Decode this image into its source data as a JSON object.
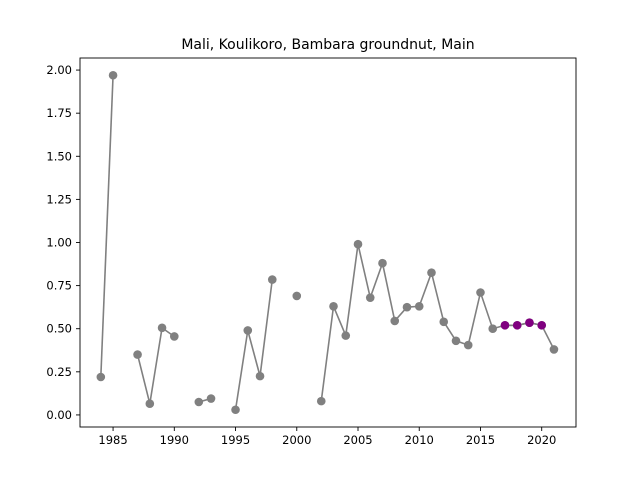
{
  "chart_data": {
    "type": "line",
    "title": "Mali, Koulikoro, Bambara groundnut, Main",
    "xlabel": "",
    "ylabel": "",
    "xlim": [
      1982.3,
      2022.8
    ],
    "ylim": [
      -0.07,
      2.07
    ],
    "xticks": [
      1985,
      1990,
      1995,
      2000,
      2005,
      2010,
      2015,
      2020
    ],
    "yticks": [
      0.0,
      0.25,
      0.5,
      0.75,
      1.0,
      1.25,
      1.5,
      1.75,
      2.0
    ],
    "ytick_labels": [
      "0.00",
      "0.25",
      "0.50",
      "0.75",
      "1.00",
      "1.25",
      "1.50",
      "1.75",
      "2.00"
    ],
    "grid": false,
    "colors": {
      "observed": "#808080",
      "highlight": "#800080"
    },
    "series": [
      {
        "color": "#808080",
        "points": [
          [
            1984,
            0.22
          ],
          [
            1985,
            1.97
          ],
          [
            1986,
            null
          ],
          [
            1987,
            0.35
          ],
          [
            1988,
            0.065
          ],
          [
            1989,
            0.505
          ],
          [
            1990,
            0.455
          ],
          [
            1991,
            null
          ],
          [
            1992,
            0.075
          ],
          [
            1993,
            0.095
          ],
          [
            1994,
            null
          ],
          [
            1995,
            0.03
          ],
          [
            1996,
            0.49
          ],
          [
            1997,
            0.225
          ],
          [
            1998,
            0.785
          ],
          [
            1999,
            null
          ],
          [
            2000,
            0.69
          ],
          [
            2001,
            null
          ],
          [
            2002,
            0.08
          ],
          [
            2003,
            0.63
          ],
          [
            2004,
            0.46
          ],
          [
            2005,
            0.99
          ],
          [
            2006,
            0.68
          ],
          [
            2007,
            0.88
          ],
          [
            2008,
            0.545
          ],
          [
            2009,
            0.625
          ],
          [
            2010,
            0.63
          ],
          [
            2011,
            0.825
          ],
          [
            2012,
            0.54
          ],
          [
            2013,
            0.43
          ],
          [
            2014,
            0.405
          ],
          [
            2015,
            0.71
          ],
          [
            2016,
            0.5
          ],
          [
            2017,
            0.52
          ],
          [
            2018,
            0.52
          ],
          [
            2019,
            0.535
          ],
          [
            2020,
            0.52
          ],
          [
            2021,
            0.38
          ]
        ]
      },
      {
        "color": "#800080",
        "points": [
          [
            2017,
            0.52
          ],
          [
            2018,
            0.52
          ],
          [
            2019,
            0.535
          ],
          [
            2020,
            0.52
          ]
        ]
      }
    ]
  }
}
